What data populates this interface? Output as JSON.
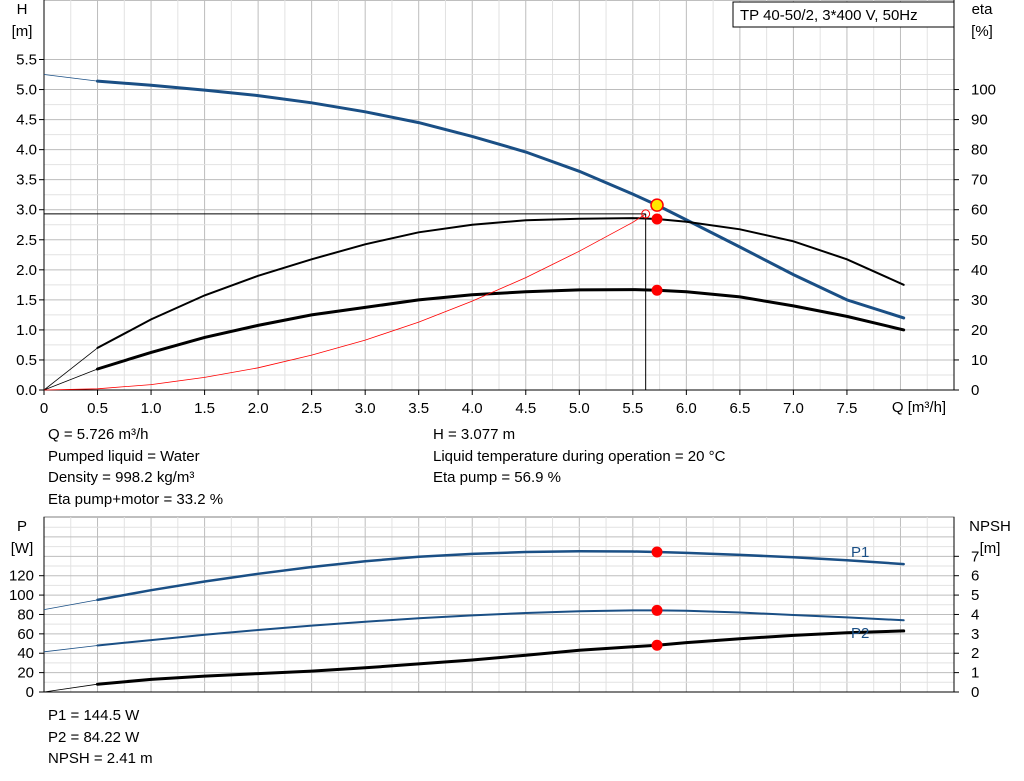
{
  "title": "TP 40-50/2, 3*400 V, 50Hz",
  "info_top_left": [
    "Q = 5.726 m³/h",
    "Pumped liquid = Water",
    "Density = 998.2 kg/m³",
    "Eta pump+motor = 33.2 %"
  ],
  "info_top_right": [
    "H = 3.077 m",
    "Liquid temperature during operation = 20 °C",
    "Eta pump = 56.9 %"
  ],
  "info_bottom_left": [
    "P1 = 144.5 W",
    "P2 = 84.22 W",
    "NPSH = 2.41 m"
  ],
  "chart_data": [
    {
      "type": "line",
      "name": "head-eta-chart",
      "ylabel_left": [
        "H",
        "[m]"
      ],
      "ylabel_right": [
        "eta",
        "[%]"
      ],
      "xlabel": "Q [m³/h]",
      "xlim": [
        0,
        8.5
      ],
      "ylim_left": [
        0,
        5.5
      ],
      "ylim_right": [
        0,
        110
      ],
      "x_ticks": [
        "0",
        "0.5",
        "1.0",
        "1.5",
        "2.0",
        "2.5",
        "3.0",
        "3.5",
        "4.0",
        "4.5",
        "5.0",
        "5.5",
        "6.0",
        "6.5",
        "7.0",
        "7.5"
      ],
      "y_ticks_left": [
        "0.0",
        "0.5",
        "1.0",
        "1.5",
        "2.0",
        "2.5",
        "3.0",
        "3.5",
        "4.0",
        "4.5",
        "5.0",
        "5.5"
      ],
      "y_ticks_right": [
        "0",
        "10",
        "20",
        "30",
        "40",
        "50",
        "60",
        "70",
        "80",
        "90",
        "100"
      ],
      "grid": true,
      "series": [
        {
          "axis": "left",
          "color": "#1a4f85",
          "x": [
            0,
            0.5,
            1.0,
            1.5,
            2.0,
            2.5,
            3.0,
            3.5,
            4.0,
            4.5,
            5.0,
            5.5,
            5.726,
            6.0,
            6.5,
            7.0,
            7.5,
            8.03
          ],
          "y": [
            5.25,
            5.14,
            5.07,
            4.99,
            4.9,
            4.78,
            4.63,
            4.45,
            4.22,
            3.96,
            3.64,
            3.26,
            3.077,
            2.83,
            2.38,
            1.92,
            1.5,
            1.2
          ]
        },
        {
          "axis": "right",
          "color": "#000000",
          "x": [
            0,
            0.5,
            1.0,
            1.5,
            2.0,
            2.5,
            3.0,
            3.5,
            4.0,
            4.5,
            5.0,
            5.5,
            5.726,
            6.0,
            6.5,
            7.0,
            7.5,
            8.03
          ],
          "y": [
            0,
            14,
            23.5,
            31.5,
            38,
            43.5,
            48.5,
            52.5,
            55,
            56.5,
            57,
            57.2,
            56.9,
            56,
            53.5,
            49.5,
            43.5,
            35
          ]
        },
        {
          "axis": "right",
          "color": "#000000",
          "x": [
            0,
            0.5,
            1.0,
            1.5,
            2.0,
            2.5,
            3.0,
            3.5,
            4.0,
            4.5,
            5.0,
            5.5,
            5.726,
            6.0,
            6.5,
            7.0,
            7.5,
            8.03
          ],
          "y": [
            0,
            7,
            12.5,
            17.5,
            21.5,
            25,
            27.5,
            30,
            31.7,
            32.7,
            33.3,
            33.4,
            33.2,
            32.7,
            31,
            28,
            24.5,
            20
          ]
        },
        {
          "axis": "left",
          "color": "#ff0000",
          "x": [
            0,
            0.5,
            1.0,
            1.5,
            2.0,
            2.5,
            3.0,
            3.5,
            4.0,
            4.5,
            5.0,
            5.5,
            5.62
          ],
          "y": [
            0,
            0.02,
            0.09,
            0.21,
            0.37,
            0.58,
            0.83,
            1.13,
            1.48,
            1.87,
            2.31,
            2.79,
            2.93
          ]
        }
      ],
      "operating_point": {
        "x": 5.726,
        "h": 3.077,
        "eta_pump": 56.9,
        "eta_total": 33.2
      }
    },
    {
      "type": "line",
      "name": "power-npsh-chart",
      "ylabel_left": [
        "P",
        "[W]"
      ],
      "ylabel_right": [
        "NPSH",
        "[m]"
      ],
      "xlim": [
        0,
        8.5
      ],
      "ylim_left": [
        0,
        160
      ],
      "ylim_right": [
        0,
        8
      ],
      "y_ticks_left": [
        "0",
        "20",
        "40",
        "60",
        "80",
        "100",
        "120"
      ],
      "y_ticks_right": [
        "0",
        "1",
        "2",
        "3",
        "4",
        "5",
        "6",
        "7"
      ],
      "grid": true,
      "series": [
        {
          "name": "P1",
          "axis": "left",
          "color": "#1a4f85",
          "x": [
            0,
            0.5,
            1.0,
            1.5,
            2.0,
            2.5,
            3.0,
            3.5,
            4.0,
            4.5,
            5.0,
            5.5,
            5.726,
            6.0,
            6.5,
            7.0,
            7.5,
            8.03
          ],
          "y": [
            85,
            95,
            105,
            114,
            122,
            129,
            135,
            139.5,
            142.5,
            144.5,
            145.2,
            145,
            144.5,
            143.5,
            141.5,
            139,
            136,
            132
          ]
        },
        {
          "name": "P2",
          "axis": "left",
          "color": "#1a4f85",
          "x": [
            0,
            0.5,
            1.0,
            1.5,
            2.0,
            2.5,
            3.0,
            3.5,
            4.0,
            4.5,
            5.0,
            5.5,
            5.726,
            6.0,
            6.5,
            7.0,
            7.5,
            8.03
          ],
          "y": [
            41.5,
            48,
            53.5,
            59,
            64,
            68.5,
            72.5,
            76,
            79,
            81.5,
            83.3,
            84.2,
            84.22,
            83.8,
            82,
            79.5,
            77,
            74
          ]
        },
        {
          "axis": "right",
          "color": "#000000",
          "x": [
            0,
            0.5,
            1.0,
            1.5,
            2.0,
            2.5,
            3.0,
            3.5,
            4.0,
            4.5,
            5.0,
            5.5,
            5.726,
            6.0,
            6.5,
            7.0,
            7.5,
            8.03
          ],
          "y": [
            0,
            0.4,
            0.65,
            0.82,
            0.95,
            1.08,
            1.25,
            1.45,
            1.65,
            1.9,
            2.15,
            2.33,
            2.41,
            2.55,
            2.75,
            2.92,
            3.06,
            3.15
          ]
        }
      ],
      "operating_point": {
        "x": 5.726,
        "p1": 144.5,
        "p2": 84.22,
        "npsh": 2.41
      }
    }
  ]
}
